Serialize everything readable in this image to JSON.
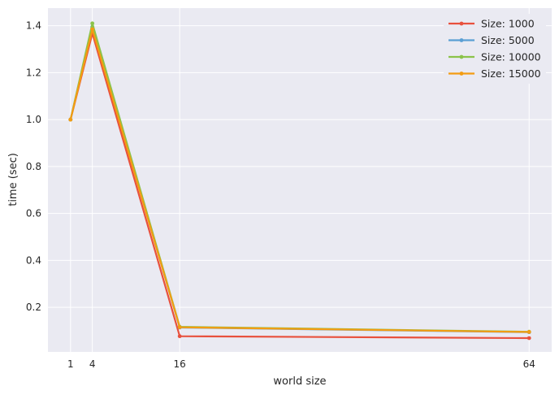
{
  "chart_data": {
    "type": "line",
    "title": "",
    "xlabel": "world size",
    "ylabel": "time (sec)",
    "x": [
      1,
      4,
      16,
      64
    ],
    "xticks": [
      1,
      4,
      16,
      64
    ],
    "yticks": [
      0.2,
      0.4,
      0.6,
      0.8,
      1.0,
      1.2,
      1.4
    ],
    "xlim": [
      -2.1,
      67.1
    ],
    "ylim": [
      0.01,
      1.475
    ],
    "grid": true,
    "legend_position": "upper right",
    "series": [
      {
        "name": "Size: 1000",
        "color": "#e8513d",
        "values": [
          1.0,
          1.368,
          0.077,
          0.069
        ]
      },
      {
        "name": "Size: 5000",
        "color": "#5a9fd4",
        "values": [
          1.0,
          1.395,
          0.114,
          0.094
        ]
      },
      {
        "name": "Size: 10000",
        "color": "#8bc34a",
        "values": [
          1.0,
          1.41,
          0.117,
          0.096
        ]
      },
      {
        "name": "Size: 15000",
        "color": "#f39c12",
        "values": [
          1.0,
          1.385,
          0.115,
          0.095
        ]
      }
    ]
  }
}
